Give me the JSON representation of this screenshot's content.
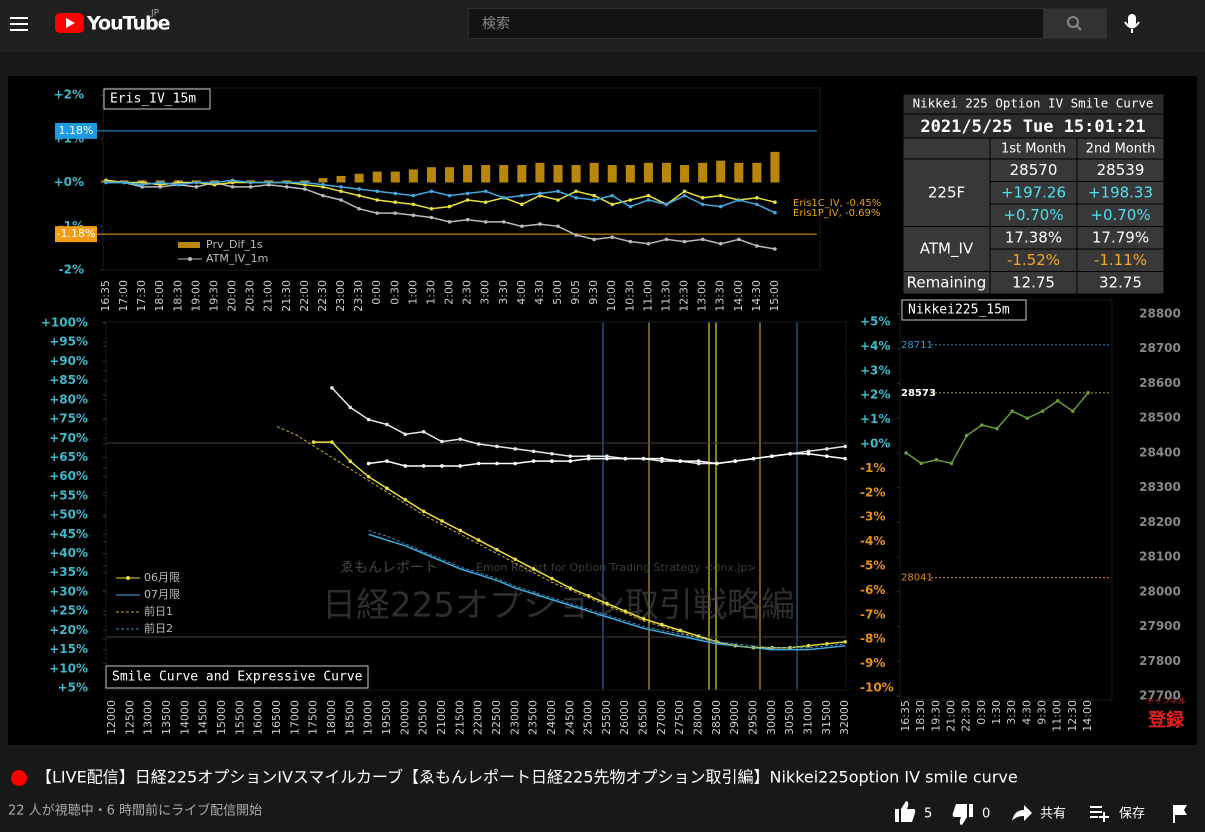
{
  "header": {
    "logo": "YouTube",
    "region": "JP",
    "search_placeholder": "検索"
  },
  "video": {
    "table": {
      "title": "Nikkei 225 Option IV Smile Curve",
      "datetime": "2021/5/25 Tue 15:01:21",
      "columns": [
        "1st Month",
        "2nd Month"
      ],
      "rows": [
        {
          "label": "225F",
          "lines": [
            {
              "cells": [
                "28570",
                "28539"
              ],
              "color": "#ffffff"
            },
            {
              "cells": [
                "+197.26",
                "+198.33"
              ],
              "color": "#4fe0f0"
            },
            {
              "cells": [
                "+0.70%",
                "+0.70%"
              ],
              "color": "#4fe0f0"
            }
          ]
        },
        {
          "label": "ATM_IV",
          "lines": [
            {
              "cells": [
                "17.38%",
                "17.79%"
              ],
              "color": "#ffffff"
            },
            {
              "cells": [
                "-1.52%",
                "-1.11%"
              ],
              "color": "#f5a623"
            }
          ]
        },
        {
          "label": "Remaining",
          "lines": [
            {
              "cells": [
                "12.75",
                "32.75"
              ],
              "color": "#ffffff"
            }
          ]
        }
      ]
    },
    "charts": [
      {
        "type": "line",
        "title": "Eris_IV_15m",
        "categories": [
          "16:35",
          "17:00",
          "17:30",
          "18:00",
          "18:30",
          "19:00",
          "19:30",
          "20:00",
          "20:30",
          "21:00",
          "21:30",
          "22:00",
          "22:30",
          "23:00",
          "23:30",
          "0:00",
          "0:30",
          "1:00",
          "1:30",
          "2:00",
          "2:30",
          "3:00",
          "3:30",
          "4:00",
          "4:30",
          "5:00",
          "9:05",
          "9:30",
          "10:00",
          "10:30",
          "11:00",
          "11:30",
          "12:30",
          "13:00",
          "13:30",
          "14:00",
          "14:30",
          "15:00"
        ],
        "ylim": [
          -2,
          2
        ],
        "yticks": [
          {
            "value": 2,
            "label": "+2%"
          },
          {
            "value": 1,
            "label": "+1%"
          },
          {
            "value": 0,
            "label": "+0%"
          },
          {
            "value": -1,
            "label": "-1%"
          },
          {
            "value": -2,
            "label": "-2%"
          }
        ],
        "series": [
          {
            "name": "Prv_Dif_1s",
            "type": "bar",
            "color": "#b8860b",
            "values": [
              0.05,
              0.05,
              0.05,
              0.05,
              0.05,
              0.05,
              0.05,
              0.05,
              0.05,
              0.05,
              0.05,
              0.05,
              0.1,
              0.15,
              0.2,
              0.25,
              0.25,
              0.3,
              0.35,
              0.35,
              0.4,
              0.4,
              0.4,
              0.4,
              0.45,
              0.4,
              0.4,
              0.45,
              0.4,
              0.4,
              0.45,
              0.45,
              0.4,
              0.45,
              0.5,
              0.45,
              0.45,
              0.7
            ]
          },
          {
            "name": "ATM_IV_1m",
            "color": "#bbbbbb",
            "markers": true,
            "values": [
              0,
              0,
              -0.1,
              -0.1,
              -0.05,
              -0.1,
              0,
              -0.1,
              -0.1,
              -0.05,
              -0.1,
              -0.15,
              -0.3,
              -0.4,
              -0.6,
              -0.7,
              -0.7,
              -0.75,
              -0.8,
              -0.9,
              -0.85,
              -0.9,
              -0.9,
              -1.0,
              -0.95,
              -1.0,
              -1.2,
              -1.3,
              -1.25,
              -1.35,
              -1.4,
              -1.3,
              -1.35,
              -1.3,
              -1.4,
              -1.3,
              -1.45,
              -1.52
            ]
          },
          {
            "color": "#e8e040",
            "markers": true,
            "values": [
              0.05,
              0,
              0,
              -0.05,
              0,
              0,
              -0.05,
              0,
              0,
              0,
              0,
              -0.05,
              -0.1,
              -0.2,
              -0.3,
              -0.4,
              -0.45,
              -0.5,
              -0.6,
              -0.55,
              -0.4,
              -0.45,
              -0.35,
              -0.5,
              -0.3,
              -0.4,
              -0.2,
              -0.3,
              -0.5,
              -0.4,
              -0.3,
              -0.5,
              -0.2,
              -0.35,
              -0.3,
              -0.4,
              -0.35,
              -0.45
            ]
          },
          {
            "color": "#3fa9e0",
            "markers": true,
            "values": [
              0,
              0,
              -0.05,
              0,
              -0.05,
              0,
              0,
              0.05,
              0,
              0,
              0,
              0,
              -0.05,
              -0.1,
              -0.15,
              -0.2,
              -0.25,
              -0.3,
              -0.2,
              -0.3,
              -0.25,
              -0.2,
              -0.35,
              -0.3,
              -0.25,
              -0.2,
              -0.35,
              -0.4,
              -0.3,
              -0.55,
              -0.4,
              -0.5,
              -0.3,
              -0.5,
              -0.55,
              -0.4,
              -0.5,
              -0.69
            ]
          }
        ],
        "reference_lines": [
          {
            "value": 1.18,
            "label": "1.18%",
            "color": "#1e9be0",
            "badge": true
          },
          {
            "value": -1.18,
            "label": "-1.18%",
            "color": "#f39c12",
            "badge": true
          }
        ],
        "annotations": [
          "Eris1C_IV, -0.45%",
          "Eris1P_IV, -0.69%"
        ]
      },
      {
        "type": "line",
        "title": "Smile Curve and Expressive Curve",
        "categories": [
          12000,
          12500,
          13000,
          13500,
          14000,
          14500,
          15000,
          15500,
          16000,
          16500,
          17000,
          17500,
          18000,
          18500,
          19000,
          19500,
          20000,
          20500,
          21000,
          21500,
          22000,
          22500,
          23000,
          23500,
          24000,
          24500,
          25000,
          25500,
          26000,
          26500,
          27000,
          27500,
          28000,
          28500,
          29000,
          29500,
          30000,
          30500,
          31000,
          31500,
          32000
        ],
        "ylim": [
          5,
          100
        ],
        "yticks": [
          {
            "value": 100,
            "label": "+100%"
          },
          {
            "value": 95,
            "label": "+95%"
          },
          {
            "value": 90,
            "label": "+90%"
          },
          {
            "value": 85,
            "label": "+85%"
          },
          {
            "value": 80,
            "label": "+80%"
          },
          {
            "value": 75,
            "label": "+75%"
          },
          {
            "value": 70,
            "label": "+70%"
          },
          {
            "value": 65,
            "label": "+65%"
          },
          {
            "value": 60,
            "label": "+60%"
          },
          {
            "value": 55,
            "label": "+55%"
          },
          {
            "value": 50,
            "label": "+50%"
          },
          {
            "value": 45,
            "label": "+45%"
          },
          {
            "value": 40,
            "label": "+40%"
          },
          {
            "value": 35,
            "label": "+35%"
          },
          {
            "value": 30,
            "label": "+30%"
          },
          {
            "value": 25,
            "label": "+25%"
          },
          {
            "value": 20,
            "label": "+20%"
          },
          {
            "value": 15,
            "label": "+15%"
          },
          {
            "value": 10,
            "label": "+10%"
          },
          {
            "value": 5,
            "label": "+5%"
          }
        ],
        "y2lim": [
          -10,
          5
        ],
        "y2ticks": [
          {
            "value": 5,
            "label": "+5%"
          },
          {
            "value": 4,
            "label": "+4%"
          },
          {
            "value": 3,
            "label": "+3%"
          },
          {
            "value": 2,
            "label": "+2%"
          },
          {
            "value": 1,
            "label": "+1%"
          },
          {
            "value": 0,
            "label": "+0%"
          },
          {
            "value": -1,
            "label": "-1%"
          },
          {
            "value": -2,
            "label": "-2%"
          },
          {
            "value": -3,
            "label": "-3%"
          },
          {
            "value": -4,
            "label": "-4%"
          },
          {
            "value": -5,
            "label": "-5%"
          },
          {
            "value": -6,
            "label": "-6%"
          },
          {
            "value": -7,
            "label": "-7%"
          },
          {
            "value": -8,
            "label": "-8%"
          },
          {
            "value": -9,
            "label": "-9%"
          },
          {
            "value": -10,
            "label": "-10%"
          }
        ],
        "series": [
          {
            "name": "06月限",
            "color": "#e8e040",
            "markers": true,
            "values": [
              null,
              null,
              null,
              null,
              null,
              null,
              null,
              null,
              null,
              null,
              null,
              69,
              69,
              64,
              60,
              57,
              54,
              51,
              48.5,
              46,
              43.5,
              41,
              38.5,
              36,
              33.5,
              31,
              29,
              27,
              25,
              23,
              21.5,
              20,
              18.5,
              17,
              16,
              15.5,
              15.5,
              15.5,
              16,
              16.5,
              17
            ]
          },
          {
            "name": "07月限",
            "color": "#3fa9e0",
            "values": [
              null,
              null,
              null,
              null,
              null,
              null,
              null,
              null,
              null,
              null,
              null,
              null,
              null,
              null,
              45,
              43.5,
              42,
              40,
              38,
              36,
              34.5,
              33,
              31,
              29.5,
              28,
              26.5,
              25,
              23.5,
              22,
              20.5,
              19.5,
              18.5,
              17.5,
              16.5,
              16,
              15.5,
              15,
              15,
              15,
              15.5,
              16
            ]
          },
          {
            "name": "前日1",
            "color": "#c8b030",
            "dash": true,
            "values": [
              null,
              null,
              null,
              null,
              null,
              null,
              null,
              null,
              null,
              73,
              71,
              68,
              65,
              62,
              59,
              56,
              53,
              50,
              47.5,
              45,
              42.5,
              40,
              37.5,
              35,
              32.5,
              30.5,
              28.5,
              26.5,
              24.5,
              22.5,
              21,
              19.5,
              18,
              17,
              16,
              15.5,
              15.5,
              15.5,
              16,
              16.5,
              17
            ]
          },
          {
            "name": "前日2",
            "color": "#3a8ac0",
            "dash": true,
            "values": [
              null,
              null,
              null,
              null,
              null,
              null,
              null,
              null,
              null,
              null,
              null,
              null,
              null,
              null,
              46,
              44.5,
              42.5,
              40.5,
              38.5,
              36.5,
              35,
              33.5,
              31.5,
              30,
              28.5,
              27,
              25.5,
              24,
              22.5,
              21,
              20,
              19,
              18,
              17,
              16.5,
              16,
              15.5,
              15.5,
              15.5,
              16,
              16.5
            ]
          },
          {
            "color": "#e6e6e6",
            "markers": true,
            "axis": "y2",
            "values": [
              null,
              null,
              null,
              null,
              null,
              null,
              null,
              null,
              null,
              null,
              null,
              null,
              2.3,
              1.5,
              1.0,
              0.8,
              0.4,
              0.5,
              0.1,
              0.2,
              0,
              -0.1,
              -0.2,
              -0.3,
              -0.4,
              -0.5,
              -0.5,
              -0.5,
              -0.6,
              -0.6,
              -0.7,
              -0.7,
              -0.8,
              -0.8,
              -0.7,
              -0.6,
              -0.5,
              -0.4,
              -0.3,
              -0.2,
              -0.1
            ]
          },
          {
            "color": "#ffffff",
            "markers": true,
            "axis": "y2",
            "values": [
              null,
              null,
              null,
              null,
              null,
              null,
              null,
              null,
              null,
              null,
              null,
              null,
              null,
              null,
              -0.8,
              -0.7,
              -0.9,
              -0.9,
              -0.9,
              -0.9,
              -0.8,
              -0.8,
              -0.8,
              -0.7,
              -0.7,
              -0.7,
              -0.6,
              -0.6,
              -0.6,
              -0.6,
              -0.6,
              -0.7,
              -0.7,
              -0.8,
              -0.7,
              -0.6,
              -0.5,
              -0.4,
              -0.4,
              -0.5,
              -0.6
            ]
          }
        ]
      },
      {
        "type": "line",
        "title": "Nikkei225_15m",
        "categories": [
          "16:35",
          "18:30",
          "19:30",
          "21:00",
          "22:30",
          "0:30",
          "1:30",
          "3:30",
          "4:30",
          "9:30",
          "11:00",
          "12:30",
          "14:00"
        ],
        "ylim": [
          27700,
          28800
        ],
        "yticks": [
          28800,
          28700,
          28600,
          28500,
          28400,
          28300,
          28200,
          28100,
          28000,
          27900,
          27800,
          27700
        ],
        "series": [
          {
            "color": "#6a9a3a",
            "markers": true,
            "values": [
              28400,
              28370,
              28380,
              28370,
              28450,
              28480,
              28470,
              28520,
              28500,
              28520,
              28550,
              28520,
              28573
            ]
          }
        ],
        "reference_lines": [
          {
            "value": 28711,
            "color": "#2a8ac0",
            "label_color": "#2a9ad0"
          },
          {
            "value": 28573,
            "color": "#a8a040",
            "label_color": "#ffffff",
            "bold": true
          },
          {
            "value": 28041,
            "color": "#e08a20",
            "label_color": "#e08a20"
          }
        ]
      }
    ],
    "watermark": [
      "ゑもんレポート",
      "Emon Report for Option Trading Strategy <dnx.jp>",
      "日経225オプション取引戦略編"
    ],
    "subscribe": [
      "チャンネル",
      "登録"
    ]
  },
  "title": "【LIVE配信】日経225オプションIVスマイルカーブ【ゑもんレポート日経225先物オプション取引編】Nikkei225option IV smile curve",
  "meta": "22 人が視聴中・6 時間前にライブ配信開始",
  "actions": {
    "likes": "5",
    "dislikes": "0",
    "share": "共有",
    "save": "保存"
  }
}
